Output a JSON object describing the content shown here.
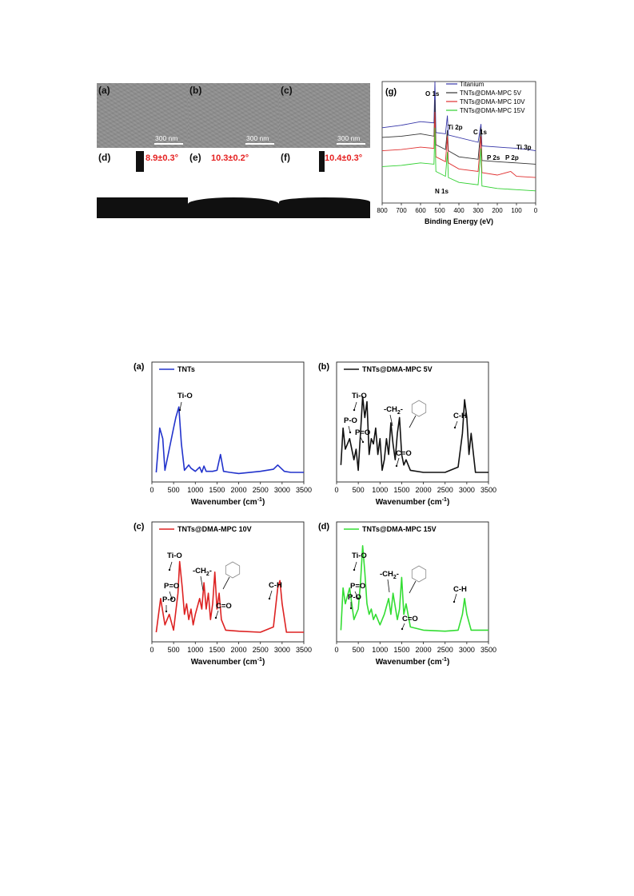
{
  "figure1": {
    "sem_panels": [
      {
        "label": "(a)",
        "scale": "300 nm"
      },
      {
        "label": "(b)",
        "scale": "300 nm"
      },
      {
        "label": "(c)",
        "scale": "300 nm"
      }
    ],
    "contact_angle_panels": [
      {
        "label": "(d)",
        "value": "8.9±0.3°"
      },
      {
        "label": "(e)",
        "value": "10.3±0.2°"
      },
      {
        "label": "(f)",
        "value": "10.4±0.3°"
      }
    ],
    "xps": {
      "label": "(g)",
      "xlabel": "Binding Energy (eV)",
      "xticks": [
        "800",
        "700",
        "600",
        "500",
        "400",
        "300",
        "200",
        "100",
        "0"
      ],
      "legend": [
        "Titanium",
        "TNTs@DMA-MPC 5V",
        "TNTs@DMA-MPC 10V",
        "TNTs@DMA-MPC 15V"
      ],
      "colors": [
        "#3535a8",
        "#333333",
        "#e03030",
        "#30d030"
      ],
      "peaks": [
        "O 1s",
        "Ti 2p",
        "C 1s",
        "Ti 3p",
        "P 2s",
        "P 2p",
        "N 1s"
      ]
    }
  },
  "figure2": {
    "xlabel": "Wavenumber (cm",
    "xlabel_sup": "-1",
    "xlabel_end": ")",
    "xticks": [
      "0",
      "500",
      "1000",
      "1500",
      "2000",
      "2500",
      "3000",
      "3500"
    ],
    "panels": [
      {
        "label": "(a)",
        "legend": "TNTs",
        "color": "#2233cc",
        "annotations": {
          "tio": "Ti-O"
        }
      },
      {
        "label": "(b)",
        "legend": "TNTs@DMA-MPC 5V",
        "color": "#111111",
        "annotations": {
          "tio": "Ti-O",
          "po": "P-O",
          "pdo": "P=O",
          "ch2": "-CH",
          "ch2_sub": "2",
          "ch2_end": "-",
          "co": "C=O",
          "ch": "C-H"
        }
      },
      {
        "label": "(c)",
        "legend": "TNTs@DMA-MPC 10V",
        "color": "#dd2222",
        "annotations": {
          "tio": "Ti-O",
          "po": "P-O",
          "pdo": "P=O",
          "ch2": "-CH",
          "ch2_sub": "2",
          "ch2_end": "-",
          "co": "C=O",
          "ch": "C-H"
        }
      },
      {
        "label": "(d)",
        "legend": "TNTs@DMA-MPC 15V",
        "color": "#33dd33",
        "annotations": {
          "tio": "Ti-O",
          "po": "P-O",
          "pdo": "P=O",
          "ch2": "-CH",
          "ch2_sub": "2",
          "ch2_end": "-",
          "co": "C=O",
          "ch": "C-H"
        }
      }
    ]
  },
  "chart_data": [
    {
      "type": "line",
      "xlabel": "Binding Energy (eV)",
      "xlim": [
        800,
        0
      ],
      "series": [
        {
          "name": "Titanium",
          "x": [
            800,
            700,
            600,
            530,
            525,
            520,
            470,
            460,
            455,
            300,
            285,
            280,
            100,
            40,
            0
          ],
          "y": [
            0.62,
            0.64,
            0.67,
            0.66,
            1.0,
            0.58,
            0.57,
            0.72,
            0.56,
            0.5,
            0.65,
            0.47,
            0.45,
            0.44,
            0.43
          ]
        },
        {
          "name": "TNTs@DMA-MPC 5V",
          "x": [
            800,
            700,
            600,
            530,
            525,
            520,
            470,
            460,
            455,
            400,
            300,
            285,
            280,
            200,
            100,
            0
          ],
          "y": [
            0.54,
            0.55,
            0.57,
            0.55,
            0.85,
            0.48,
            0.44,
            0.6,
            0.43,
            0.38,
            0.36,
            0.62,
            0.35,
            0.34,
            0.33,
            0.32
          ]
        },
        {
          "name": "TNTs@DMA-MPC 10V",
          "x": [
            800,
            700,
            600,
            530,
            525,
            520,
            470,
            460,
            455,
            400,
            300,
            285,
            280,
            200,
            130,
            100,
            0
          ],
          "y": [
            0.43,
            0.44,
            0.46,
            0.45,
            0.75,
            0.38,
            0.34,
            0.55,
            0.33,
            0.28,
            0.26,
            0.55,
            0.25,
            0.23,
            0.26,
            0.22,
            0.21
          ]
        },
        {
          "name": "TNTs@DMA-MPC 15V",
          "x": [
            800,
            700,
            600,
            530,
            525,
            520,
            470,
            460,
            455,
            400,
            300,
            285,
            280,
            200,
            100,
            0
          ],
          "y": [
            0.3,
            0.31,
            0.33,
            0.32,
            0.62,
            0.26,
            0.22,
            0.42,
            0.21,
            0.17,
            0.15,
            0.45,
            0.14,
            0.12,
            0.11,
            0.1
          ]
        }
      ]
    },
    {
      "type": "line",
      "xlabel": "Wavenumber (cm-1)",
      "xlim": [
        0,
        3500
      ],
      "series": [
        {
          "name": "TNTs",
          "x": [
            100,
            180,
            250,
            300,
            400,
            500,
            550,
            620,
            680,
            750,
            850,
            900,
            1000,
            1100,
            1150,
            1200,
            1250,
            1300,
            1400,
            1500,
            1580,
            1650,
            1800,
            2000,
            2500,
            2800,
            2900,
            2950,
            3050,
            3200,
            3500
          ],
          "y": [
            0.03,
            0.45,
            0.35,
            0.05,
            0.25,
            0.45,
            0.55,
            0.65,
            0.3,
            0.05,
            0.1,
            0.07,
            0.04,
            0.08,
            0.03,
            0.09,
            0.04,
            0.04,
            0.04,
            0.05,
            0.2,
            0.04,
            0.03,
            0.02,
            0.04,
            0.06,
            0.1,
            0.08,
            0.04,
            0.03,
            0.03
          ]
        },
        {
          "name": "TNTs@DMA-MPC 5V",
          "x": [
            100,
            150,
            200,
            300,
            400,
            450,
            500,
            550,
            600,
            650,
            700,
            750,
            800,
            850,
            900,
            950,
            1000,
            1050,
            1100,
            1150,
            1200,
            1250,
            1300,
            1350,
            1400,
            1450,
            1500,
            1550,
            1600,
            1700,
            2000,
            2500,
            2800,
            2900,
            2950,
            3000,
            3050,
            3100,
            3200,
            3500
          ],
          "y": [
            0.1,
            0.45,
            0.25,
            0.35,
            0.15,
            0.25,
            0.05,
            0.4,
            0.75,
            0.55,
            0.7,
            0.2,
            0.35,
            0.3,
            0.45,
            0.2,
            0.35,
            0.05,
            0.15,
            0.35,
            0.2,
            0.5,
            0.3,
            0.15,
            0.4,
            0.55,
            0.2,
            0.1,
            0.15,
            0.05,
            0.03,
            0.03,
            0.08,
            0.4,
            0.72,
            0.55,
            0.2,
            0.4,
            0.03,
            0.03
          ]
        },
        {
          "name": "TNTs@DMA-MPC 10V",
          "x": [
            100,
            200,
            300,
            400,
            500,
            600,
            640,
            700,
            750,
            800,
            850,
            900,
            950,
            1000,
            1100,
            1150,
            1200,
            1250,
            1300,
            1350,
            1400,
            1450,
            1500,
            1550,
            1600,
            1700,
            2000,
            2500,
            2800,
            2900,
            2950,
            3000,
            3100,
            3500
          ],
          "y": [
            0.03,
            0.35,
            0.1,
            0.2,
            0.05,
            0.4,
            0.7,
            0.45,
            0.2,
            0.3,
            0.15,
            0.25,
            0.1,
            0.2,
            0.35,
            0.25,
            0.5,
            0.25,
            0.4,
            0.15,
            0.3,
            0.6,
            0.25,
            0.4,
            0.15,
            0.05,
            0.04,
            0.03,
            0.08,
            0.45,
            0.52,
            0.3,
            0.03,
            0.03
          ]
        },
        {
          "name": "TNTs@DMA-MPC 15V",
          "x": [
            100,
            150,
            200,
            300,
            400,
            500,
            550,
            600,
            650,
            700,
            750,
            800,
            850,
            900,
            1000,
            1100,
            1200,
            1250,
            1300,
            1400,
            1450,
            1500,
            1550,
            1600,
            1700,
            2000,
            2500,
            2800,
            2900,
            2950,
            3000,
            3100,
            3500
          ],
          "y": [
            0.05,
            0.45,
            0.3,
            0.45,
            0.15,
            0.25,
            0.5,
            0.85,
            0.6,
            0.3,
            0.2,
            0.25,
            0.15,
            0.2,
            0.1,
            0.2,
            0.35,
            0.2,
            0.4,
            0.15,
            0.25,
            0.55,
            0.2,
            0.3,
            0.08,
            0.05,
            0.04,
            0.05,
            0.2,
            0.35,
            0.2,
            0.05,
            0.05
          ]
        }
      ]
    }
  ]
}
